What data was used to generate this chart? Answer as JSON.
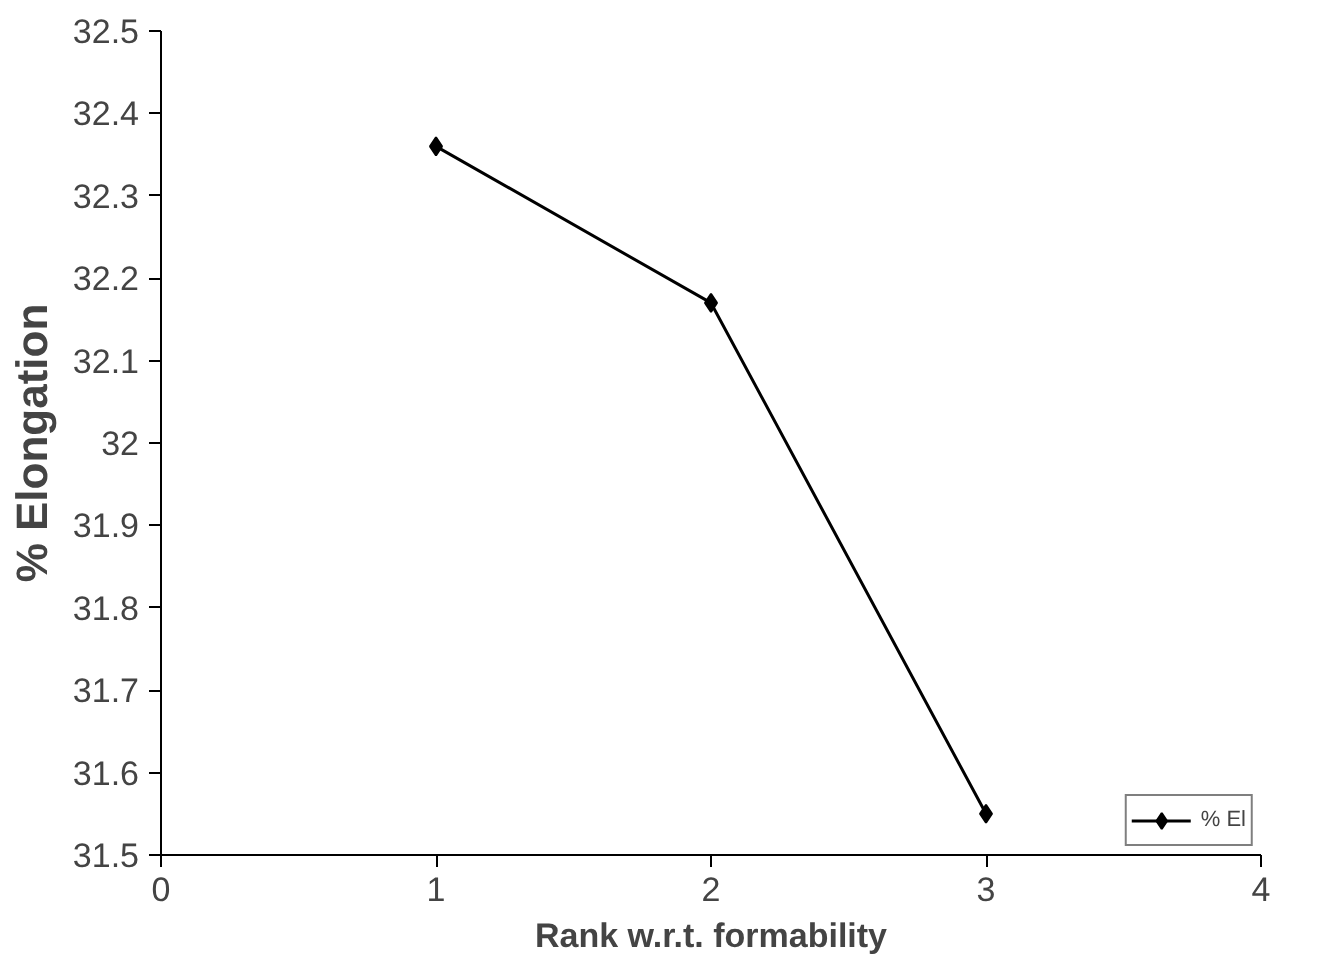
{
  "chart_data": {
    "type": "line",
    "xlabel": "Rank w.r.t. formability",
    "ylabel": "% Elongation",
    "x": [
      1,
      2,
      3
    ],
    "series": [
      {
        "name": "% El",
        "color": "#000000",
        "values": [
          32.36,
          32.17,
          31.55
        ]
      }
    ],
    "xlim": [
      0,
      4
    ],
    "xticks": [
      0,
      1,
      2,
      3,
      4
    ],
    "ylim": [
      31.5,
      32.5
    ],
    "yticks": [
      31.5,
      31.6,
      31.7,
      31.8,
      31.9,
      32,
      32.1,
      32.2,
      32.3,
      32.4,
      32.5
    ],
    "grid": false,
    "legend": "bottom right",
    "marker": "diamond",
    "line_style": "solid"
  }
}
